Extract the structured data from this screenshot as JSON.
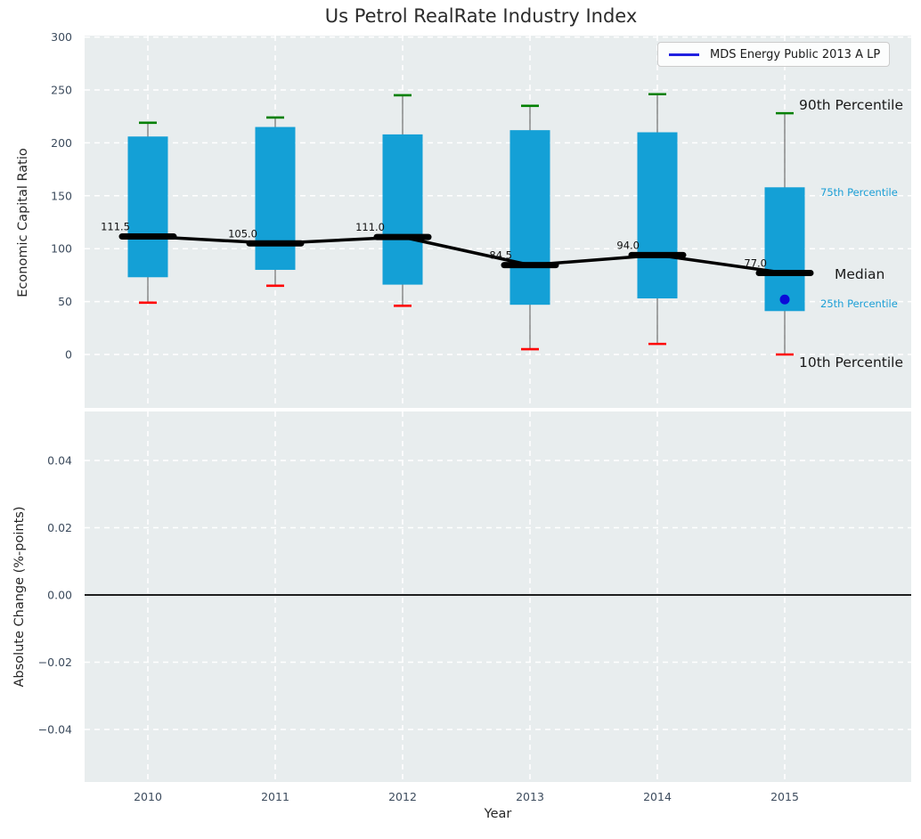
{
  "title": "Us Petrol RealRate Industry Index",
  "legend": {
    "label": "MDS Energy Public 2013 A LP"
  },
  "colors": {
    "box_fill": "#14A0D6",
    "whisker_line": "#777777",
    "cap_top": "#008000",
    "cap_bottom": "#FF0000",
    "median_line": "#000000",
    "fund_point": "#0B0BD8",
    "legend_line": "#2020E0",
    "panel_bg": "#E8EDEE",
    "grid": "#FFFFFF",
    "tick_label": "#3C4B5D",
    "annotation": "#111111",
    "label_dark": "#1A1A1A",
    "label_accent": "#1C9FD6",
    "zero_line": "#000000"
  },
  "chart_data": [
    {
      "type": "boxplot",
      "panel": "top",
      "title": "Us Petrol RealRate Industry Index",
      "ylabel": "Economic Capital Ratio",
      "ylim": [
        -50,
        300
      ],
      "grid": true,
      "legend_position": "upper right",
      "yticks": [
        0,
        50,
        100,
        150,
        200,
        250,
        300
      ],
      "ytick_labels": [
        "0",
        "50",
        "100",
        "150",
        "200",
        "250",
        "300"
      ],
      "categories": [
        2010,
        2011,
        2012,
        2013,
        2014,
        2015
      ],
      "series": [
        {
          "name": "90th Percentile",
          "values": [
            219,
            224,
            245,
            235,
            246,
            228
          ]
        },
        {
          "name": "75th Percentile",
          "values": [
            206,
            215,
            208,
            212,
            210,
            158
          ]
        },
        {
          "name": "Median",
          "values": [
            111.5,
            105.0,
            111.0,
            84.5,
            94.0,
            77.0
          ]
        },
        {
          "name": "25th Percentile",
          "values": [
            73,
            80,
            66,
            47,
            53,
            41
          ]
        },
        {
          "name": "10th Percentile",
          "values": [
            49,
            65,
            46,
            5,
            10,
            0
          ]
        }
      ],
      "median_labels": [
        "111.5",
        "105.0",
        "111.0",
        "84.5",
        "94.0",
        "77.0"
      ],
      "right_labels": [
        "90th Percentile",
        "75th Percentile",
        "Median",
        "25th Percentile",
        "10th Percentile"
      ],
      "fund_point": {
        "name": "MDS Energy Public 2013 A LP",
        "x": 2015,
        "y": 52
      }
    },
    {
      "type": "line",
      "panel": "bottom",
      "ylabel": "Absolute Change (%-points)",
      "xlabel": "Year",
      "ylim": [
        -0.055,
        0.055
      ],
      "grid": true,
      "zero_line": true,
      "yticks": [
        0.04,
        0.02,
        0.0,
        -0.02,
        -0.04
      ],
      "ytick_labels": [
        "0.04",
        "0.02",
        "0.00",
        "−0.02",
        "−0.04"
      ],
      "xtick_labels": [
        "2010",
        "2011",
        "2012",
        "2013",
        "2014",
        "2015"
      ],
      "series": []
    }
  ]
}
